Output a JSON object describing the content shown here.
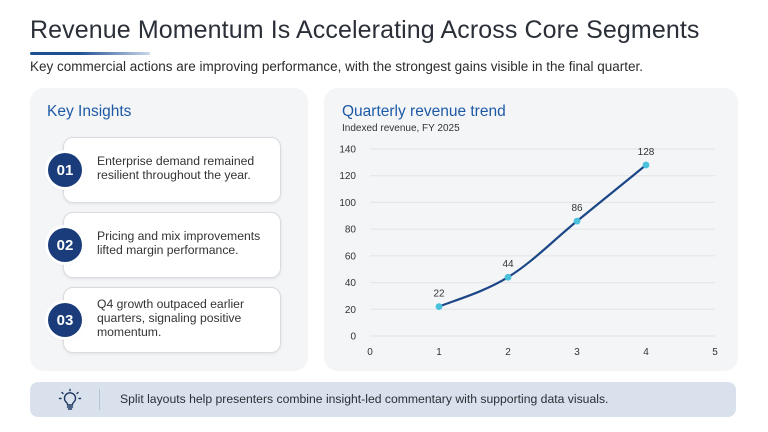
{
  "slide": {
    "title": "Revenue Momentum Is Accelerating Across Core Segments",
    "subtitle": "Key commercial actions are improving performance, with the strongest gains visible in the final quarter."
  },
  "insights": {
    "heading": "Key Insights",
    "items": [
      {
        "number": "01",
        "text": "Enterprise demand remained resilient throughout the year."
      },
      {
        "number": "02",
        "text": "Pricing and mix improvements lifted margin performance."
      },
      {
        "number": "03",
        "text": "Q4 growth outpaced earlier quarters, signaling positive momentum."
      }
    ]
  },
  "chart_panel": {
    "heading": "Quarterly revenue trend",
    "subheading": "Indexed revenue, FY 2025"
  },
  "chart_data": {
    "type": "line",
    "title": "Quarterly revenue trend",
    "subtitle": "Indexed revenue, FY 2025",
    "x": [
      1,
      2,
      3,
      4
    ],
    "series": [
      {
        "values": [
          22,
          44,
          86,
          128
        ]
      }
    ],
    "data_labels": [
      "22",
      "44",
      "86",
      "128"
    ],
    "xlim": [
      0,
      5
    ],
    "ylim": [
      0,
      140
    ],
    "xticks": [
      0,
      1,
      2,
      3,
      4,
      5
    ],
    "yticks": [
      0,
      20,
      40,
      60,
      80,
      100,
      120,
      140
    ],
    "grid": "horizontal",
    "line_color": "#1c4787",
    "marker_color": "#49c0dc",
    "grid_color": "#e3e4e7"
  },
  "footer": {
    "icon": "lightbulb-icon",
    "text": "Split layouts help presenters combine insight-led commentary with supporting data visuals."
  },
  "colors": {
    "accent": "#1d5aa6",
    "badge": "#1a3c7a",
    "panel": "#f4f5f7",
    "footer": "#d9e1ec"
  }
}
